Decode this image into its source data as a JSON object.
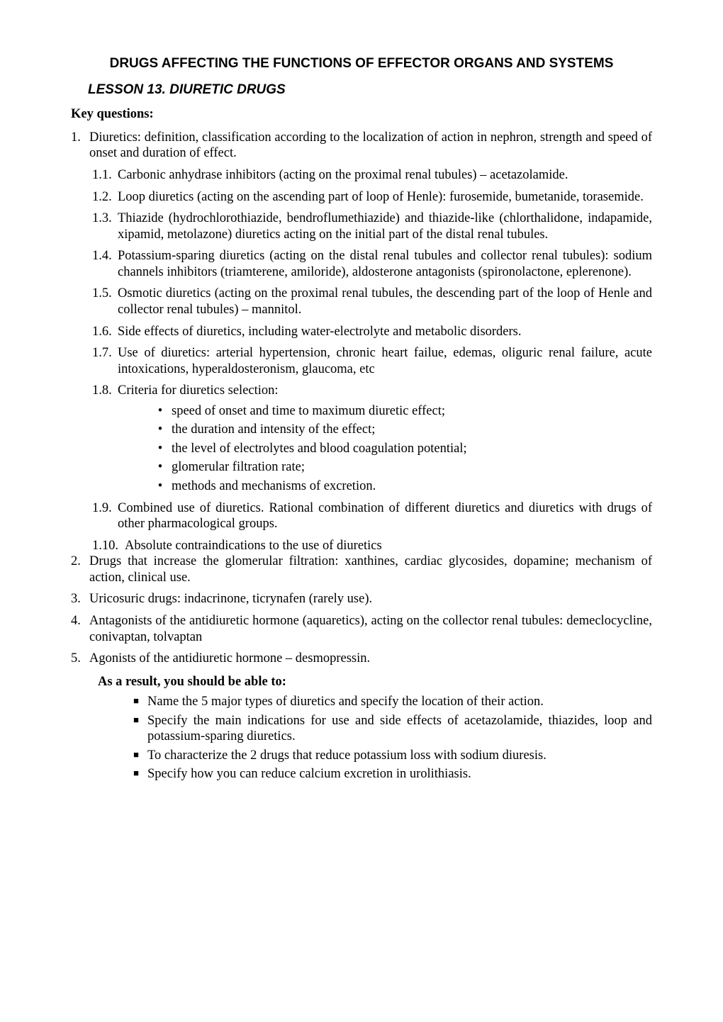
{
  "sectionTitle": "DRUGS AFFECTING THE FUNCTIONS OF EFFECTOR ORGANS AND SYSTEMS",
  "lessonTitle": "LESSON 13. DIURETIC DRUGS",
  "keyQuestionsLabel": "Key questions:",
  "items": [
    {
      "num": "1.",
      "text": "Diuretics: definition, classification according to the localization of action in nephron, strength and speed of onset and duration of effect.",
      "subs": [
        {
          "num": "1.1.",
          "text": "Carbonic anhydrase inhibitors (acting on the proximal renal tubules) – acetazolamide."
        },
        {
          "num": "1.2.",
          "text": "Loop diuretics (acting on the ascending part of loop of Henle): furosemide, bumetanide, torasemide."
        },
        {
          "num": "1.3.",
          "text": "Thiazide (hydrochlorothiazide, bendroflumethiazide) and thiazide-like (chlorthalidone, indapamide, xipamid, metolazone) diuretics acting on the initial part of the distal renal tubules."
        },
        {
          "num": "1.4.",
          "text": "Potassium-sparing diuretics (acting on the distal renal tubules and collector renal tubules): sodium channels inhibitors (triamterene, amiloride), aldosterone antagonists (spironolactone, eplerenone)."
        },
        {
          "num": "1.5.",
          "text": "Osmotic diuretics (acting on the proximal renal tubules, the descending part of the loop of Henle and collector renal tubules) – mannitol."
        },
        {
          "num": "1.6.",
          "text": "Side effects of diuretics, including water-electrolyte and metabolic disorders."
        },
        {
          "num": "1.7.",
          "text": "Use of diuretics: arterial hypertension, chronic heart failue, edemas, oliguric renal failure, acute intoxications, hyperaldosteronism, glaucoma, etc"
        },
        {
          "num": "1.8.",
          "text": "Criteria for diuretics selection:",
          "bullets": [
            "speed of onset and time to maximum diuretic effect;",
            "the duration and intensity of the effect;",
            "the level of electrolytes and blood coagulation potential;",
            "glomerular filtration rate;",
            "methods and mechanisms of excretion."
          ]
        },
        {
          "num": "1.9.",
          "text": "Combined use of diuretics. Rational combination of different diuretics and diuretics with drugs of other pharmacological groups."
        },
        {
          "num": "1.10.",
          "text": "Absolute contraindications to the use of diuretics",
          "wide": true
        }
      ]
    },
    {
      "num": "2.",
      "text": "Drugs that increase the glomerular filtration: xanthines, cardiac glycosides, dopamine; mechanism of action, clinical use."
    },
    {
      "num": "3.",
      "text": "Uricosuric drugs: indacrinone, ticrynafen (rarely use)."
    },
    {
      "num": "4.",
      "text": "Antagonists of the antidiuretic hormone (aquaretics), acting on the collector renal tubules: demeclocycline, conivaptan, tolvaptan"
    },
    {
      "num": "5.",
      "text": "Agonists of the antidiuretic hormone – desmopressin."
    }
  ],
  "resultHeader": "As a result, you should be able to:",
  "resultItems": [
    "Name the 5 major types of diuretics and specify the location of their action.",
    "Specify the main indications for use and side effects of acetazolamide, thiazides, loop and potassium-sparing diuretics.",
    "To characterize the 2 drugs that reduce potassium loss with sodium diuresis.",
    "Specify how you can reduce calcium excretion in urolithiasis."
  ]
}
